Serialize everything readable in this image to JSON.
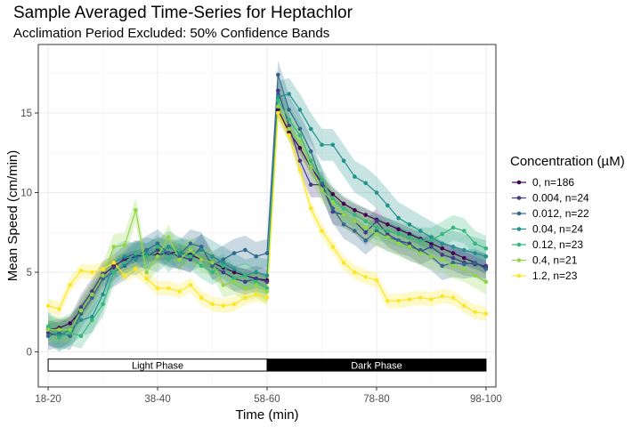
{
  "chart_data": {
    "type": "line",
    "title": "Sample Averaged Time-Series for Heptachlor",
    "subtitle": "Acclimation Period Excluded: 50% Confidence Bands",
    "xlabel": "Time (min)",
    "ylabel": "Mean Speed (cm/min)",
    "x_ticks": [
      "18-20",
      "38-40",
      "58-60",
      "78-80",
      "98-100"
    ],
    "x_tick_positions": [
      19,
      39,
      59,
      79,
      99
    ],
    "y_ticks": [
      0,
      5,
      10,
      15
    ],
    "xlim": [
      17.2,
      100.8
    ],
    "ylim": [
      -2.2,
      19.3
    ],
    "grid": true,
    "legend": {
      "title": "Concentration (µM)",
      "position": "right"
    },
    "phases": [
      {
        "label": "Light Phase",
        "x_start": 19,
        "x_end": 59,
        "fill": "#ffffff",
        "text_color": "#000000"
      },
      {
        "label": "Dark Phase",
        "x_start": 59,
        "x_end": 99,
        "fill": "#000000",
        "text_color": "#ffffff"
      }
    ],
    "phase_band_y": [
      -1.2,
      -0.45
    ],
    "x": [
      19,
      21,
      23,
      25,
      27,
      29,
      31,
      33,
      35,
      37,
      39,
      41,
      43,
      45,
      47,
      49,
      51,
      53,
      55,
      57,
      59,
      61,
      63,
      65,
      67,
      69,
      71,
      73,
      75,
      77,
      79,
      81,
      83,
      85,
      87,
      89,
      91,
      93,
      95,
      97,
      99
    ],
    "series": [
      {
        "name": "0, n=186",
        "color": "#440154",
        "band": 0.4,
        "values": [
          1.4,
          1.5,
          1.8,
          2.6,
          3.6,
          4.8,
          5.4,
          5.8,
          6.0,
          6.1,
          6.1,
          6.2,
          6.3,
          6.1,
          5.8,
          5.6,
          5.3,
          5.0,
          4.8,
          4.6,
          4.5,
          15.2,
          13.8,
          12.8,
          11.6,
          10.6,
          9.9,
          9.3,
          8.9,
          8.6,
          8.3,
          8.0,
          7.7,
          7.4,
          7.1,
          6.8,
          6.5,
          6.2,
          5.9,
          5.6,
          5.3
        ]
      },
      {
        "name": "0.004, n=24",
        "color": "#443a83",
        "band": 0.8,
        "values": [
          1.2,
          1.0,
          1.4,
          2.8,
          3.8,
          4.9,
          5.3,
          5.9,
          6.2,
          6.0,
          6.4,
          6.2,
          6.0,
          5.8,
          6.6,
          5.4,
          5.0,
          4.6,
          4.4,
          4.6,
          4.4,
          16.4,
          14.2,
          12.0,
          10.5,
          10.5,
          8.8,
          8.6,
          8.2,
          7.5,
          8.2,
          7.4,
          7.0,
          6.8,
          6.3,
          6.6,
          6.1,
          5.9,
          5.6,
          5.5,
          5.4
        ]
      },
      {
        "name": "0.012, n=22",
        "color": "#31688e",
        "band": 0.9,
        "values": [
          1.0,
          1.2,
          1.0,
          2.4,
          3.4,
          4.6,
          5.0,
          5.4,
          6.0,
          6.4,
          6.8,
          6.2,
          6.1,
          6.8,
          6.6,
          5.4,
          5.8,
          6.2,
          6.4,
          6.0,
          6.2,
          17.4,
          15.2,
          14.0,
          12.6,
          10.6,
          9.0,
          8.0,
          7.6,
          7.0,
          7.6,
          7.2,
          7.0,
          6.6,
          6.4,
          6.0,
          5.4,
          5.6,
          5.5,
          5.6,
          5.2
        ]
      },
      {
        "name": "0.04, n=24",
        "color": "#21918c",
        "band": 1.0,
        "values": [
          1.5,
          1.0,
          1.4,
          2.0,
          2.2,
          3.6,
          5.6,
          6.0,
          5.8,
          6.2,
          6.0,
          6.6,
          6.2,
          6.0,
          6.4,
          6.0,
          5.6,
          5.2,
          4.8,
          5.0,
          4.8,
          16.0,
          16.2,
          15.2,
          14.0,
          13.0,
          13.0,
          12.0,
          11.0,
          10.6,
          10.0,
          9.2,
          8.4,
          8.0,
          7.6,
          7.2,
          6.8,
          6.6,
          6.4,
          6.2,
          6.0
        ]
      },
      {
        "name": "0.12, n=23",
        "color": "#35b779",
        "band": 0.8,
        "values": [
          1.6,
          0.9,
          1.2,
          1.0,
          2.0,
          3.0,
          5.0,
          5.6,
          6.2,
          6.0,
          6.6,
          5.8,
          6.4,
          6.0,
          5.4,
          5.0,
          5.4,
          4.6,
          4.8,
          4.4,
          4.0,
          15.8,
          14.6,
          13.6,
          12.0,
          10.8,
          9.6,
          9.0,
          8.6,
          8.2,
          7.8,
          7.6,
          7.4,
          7.2,
          7.0,
          7.0,
          7.4,
          7.8,
          7.6,
          6.8,
          6.5
        ]
      },
      {
        "name": "0.4, n=21",
        "color": "#8fd744",
        "band": 0.8,
        "values": [
          1.4,
          1.4,
          1.4,
          2.6,
          3.6,
          4.8,
          6.6,
          6.7,
          8.9,
          5.0,
          6.0,
          7.2,
          5.8,
          6.4,
          5.8,
          5.6,
          4.2,
          4.4,
          4.0,
          4.2,
          3.8,
          15.4,
          14.0,
          13.2,
          11.6,
          10.2,
          9.4,
          8.6,
          8.2,
          7.8,
          7.4,
          7.2,
          6.8,
          6.6,
          6.2,
          6.0,
          5.8,
          5.4,
          5.2,
          4.8,
          4.4
        ]
      },
      {
        "name": "1.2, n=23",
        "color": "#fde725",
        "band": 0.45,
        "values": [
          2.9,
          2.7,
          4.2,
          5.1,
          5.0,
          5.2,
          5.6,
          4.8,
          5.2,
          4.6,
          4.0,
          4.0,
          3.8,
          4.2,
          3.4,
          3.0,
          2.9,
          3.0,
          3.4,
          3.6,
          3.4,
          15.0,
          13.6,
          11.4,
          9.0,
          7.6,
          6.6,
          5.6,
          5.0,
          4.7,
          4.5,
          3.2,
          3.2,
          3.3,
          3.4,
          3.3,
          3.5,
          3.4,
          2.9,
          2.5,
          2.4
        ]
      }
    ]
  }
}
